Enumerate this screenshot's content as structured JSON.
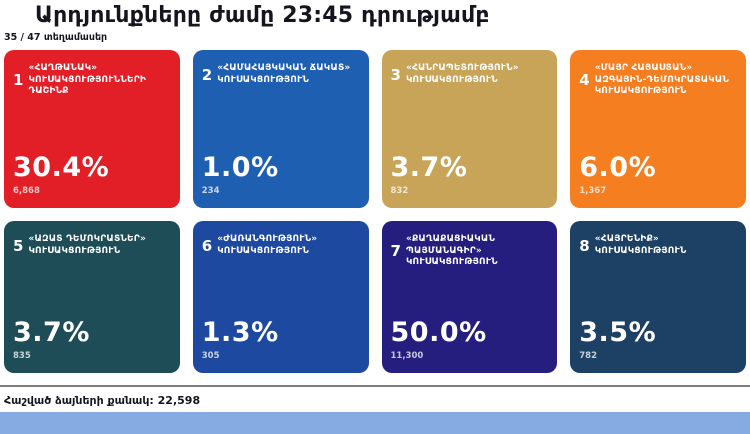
{
  "page": {
    "title": "Արդյունքները ժամը 23:45 դրությամբ",
    "subtitle": "35 / 47 տեղամասեր",
    "total_label": "Հաշված ձայների քանակ: 22,598"
  },
  "colors": {
    "bottom_bar": "#85abe2",
    "divider": "#7d7d7d",
    "text": "#15151f"
  },
  "cards": [
    {
      "number": "1",
      "name": "«ՀԱՂԹԱՆԱԿ» ԿՈՒՍԱԿՑՈՒԹՅՈՒՆՆԵՐԻ ԴԱՇԻՆՔ",
      "percent": "30.4%",
      "votes": "6,868",
      "color": "#e21f26"
    },
    {
      "number": "2",
      "name": "«ՀԱՄԱՀԱՅԿԱԿԱՆ ՃԱԿԱՏ» ԿՈՒՍԱԿՑՈՒԹՅՈՒՆ",
      "percent": "1.0%",
      "votes": "234",
      "color": "#1f5fb2"
    },
    {
      "number": "3",
      "name": "«ՀԱՆՐԱՊԵՏՈՒԹՅՈՒՆ» ԿՈՒՍԱԿՑՈՒԹՅՈՒՆ",
      "percent": "3.7%",
      "votes": "832",
      "color": "#c7a458"
    },
    {
      "number": "4",
      "name": "«ՄԱՅՐ ՀԱՅԱՍՏԱՆ» ԱԶԳԱՅԻՆ-ԴԵՄՈԿՐԱՏԱԿԱՆ ԿՈՒՍԱԿՑՈՒԹՅՈՒՆ",
      "percent": "6.0%",
      "votes": "1,367",
      "color": "#f57e20"
    },
    {
      "number": "5",
      "name": "«ԱԶԱՏ ԴԵՄՈԿՐԱՏՆԵՐ» ԿՈՒՍԱԿՑՈՒԹՅՈՒՆ",
      "percent": "3.7%",
      "votes": "835",
      "color": "#1e4d58"
    },
    {
      "number": "6",
      "name": "«ԺԱՌԱՆԳՈՒԹՅՈՒՆ» ԿՈՒՍԱԿՑՈՒԹՅՈՒՆ",
      "percent": "1.3%",
      "votes": "305",
      "color": "#1e49a0"
    },
    {
      "number": "7",
      "name": "«ՔԱՂԱՔԱՑԻԱԿԱՆ ՊԱՅՄԱՆԱԳԻՐ» ԿՈՒՍԱԿՑՈՒԹՅՈՒՆ",
      "percent": "50.0%",
      "votes": "11,300",
      "color": "#251e7e"
    },
    {
      "number": "8",
      "name": "«ՀԱՅՐԵՆԻՔ» ԿՈՒՍԱԿՑՈՒԹՅՈՒՆ",
      "percent": "3.5%",
      "votes": "782",
      "color": "#1d4165"
    }
  ],
  "chart_data": {
    "type": "table",
    "title": "Արդյունքները ժամը 23:45 դրությամբ",
    "subtitle": "35 / 47 տեղամասեր",
    "categories": [
      "«ՀԱՂԹԱՆԱԿ» ԿՈՒՍԱԿՑՈՒԹՅՈՒՆՆԵՐԻ ԴԱՇԻՆՔ",
      "«ՀԱՄԱՀԱՅԿԱԿԱՆ ՃԱԿԱՏ» ԿՈՒՍԱԿՑՈՒԹՅՈՒՆ",
      "«ՀԱՆՐԱՊԵՏՈՒԹՅՈՒՆ» ԿՈՒՍԱԿՑՈՒԹՅՈՒՆ",
      "«ՄԱՅՐ ՀԱՅԱՍՏԱՆ» ԱԶԳԱՅԻՆ-ԴԵՄՈԿՐԱՏԱԿԱՆ ԿՈՒՍԱԿՑՈՒԹՅՈՒՆ",
      "«ԱԶԱՏ ԴԵՄՈԿՐԱՏՆԵՐ» ԿՈՒՍԱԿՑՈՒԹՅՈՒՆ",
      "«ԺԱՌԱՆԳՈՒԹՅՈՒՆ» ԿՈՒՍԱԿՑՈՒԹՅՈՒՆ",
      "«ՔԱՂԱՔԱՑԻԱԿԱՆ ՊԱՅՄԱՆԱԳԻՐ» ԿՈՒՍԱԿՑՈՒԹՅՈՒՆ",
      "«ՀԱՅՐԵՆԻՔ» ԿՈՒՍԱԿՑՈՒԹՅՈՒՆ"
    ],
    "series": [
      {
        "name": "percent",
        "values": [
          30.4,
          1.0,
          3.7,
          6.0,
          3.7,
          1.3,
          50.0,
          3.5
        ]
      },
      {
        "name": "votes",
        "values": [
          6868,
          234,
          832,
          1367,
          835,
          305,
          11300,
          782
        ]
      }
    ],
    "total_votes_counted": 22598,
    "precincts_counted": 35,
    "precincts_total": 47
  }
}
